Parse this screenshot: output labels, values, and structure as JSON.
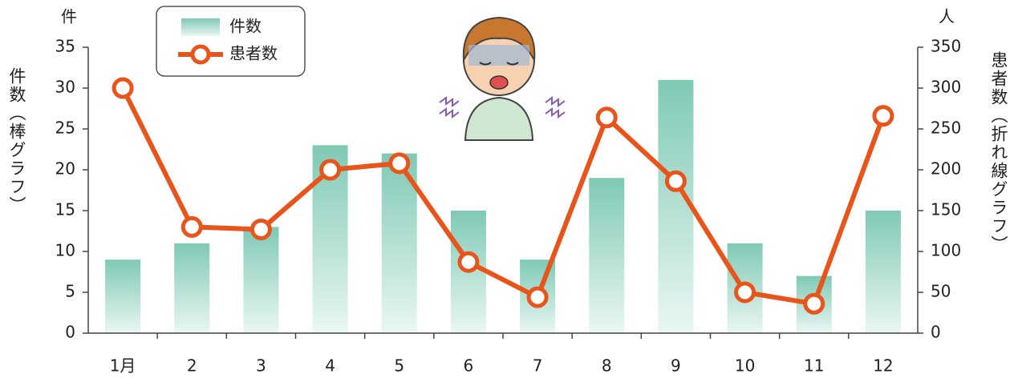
{
  "chart_data": {
    "type": "bar",
    "categories": [
      "1月",
      "2",
      "3",
      "4",
      "5",
      "6",
      "7",
      "8",
      "9",
      "10",
      "11",
      "12"
    ],
    "series": [
      {
        "name": "件数",
        "type": "bar",
        "color": "#7fc9b5",
        "values": [
          9,
          11,
          13,
          23,
          22,
          15,
          9,
          19,
          31,
          11,
          7,
          15
        ]
      },
      {
        "name": "患者数",
        "type": "line",
        "axis": "y2",
        "color": "#e8541a",
        "values": [
          300,
          130,
          127,
          200,
          208,
          87,
          44,
          264,
          186,
          50,
          36,
          266
        ]
      }
    ],
    "ylim": [
      0,
      35
    ],
    "yticks": [
      0,
      5,
      10,
      15,
      20,
      25,
      30,
      35
    ],
    "y2lim": [
      0,
      350
    ],
    "y2ticks": [
      0,
      50,
      100,
      150,
      200,
      250,
      300,
      350
    ],
    "y_unit": "件",
    "y2_unit": "人",
    "y_label": "件数（棒グラフ）",
    "y2_label": "患者数（折れ線グラフ）"
  }
}
